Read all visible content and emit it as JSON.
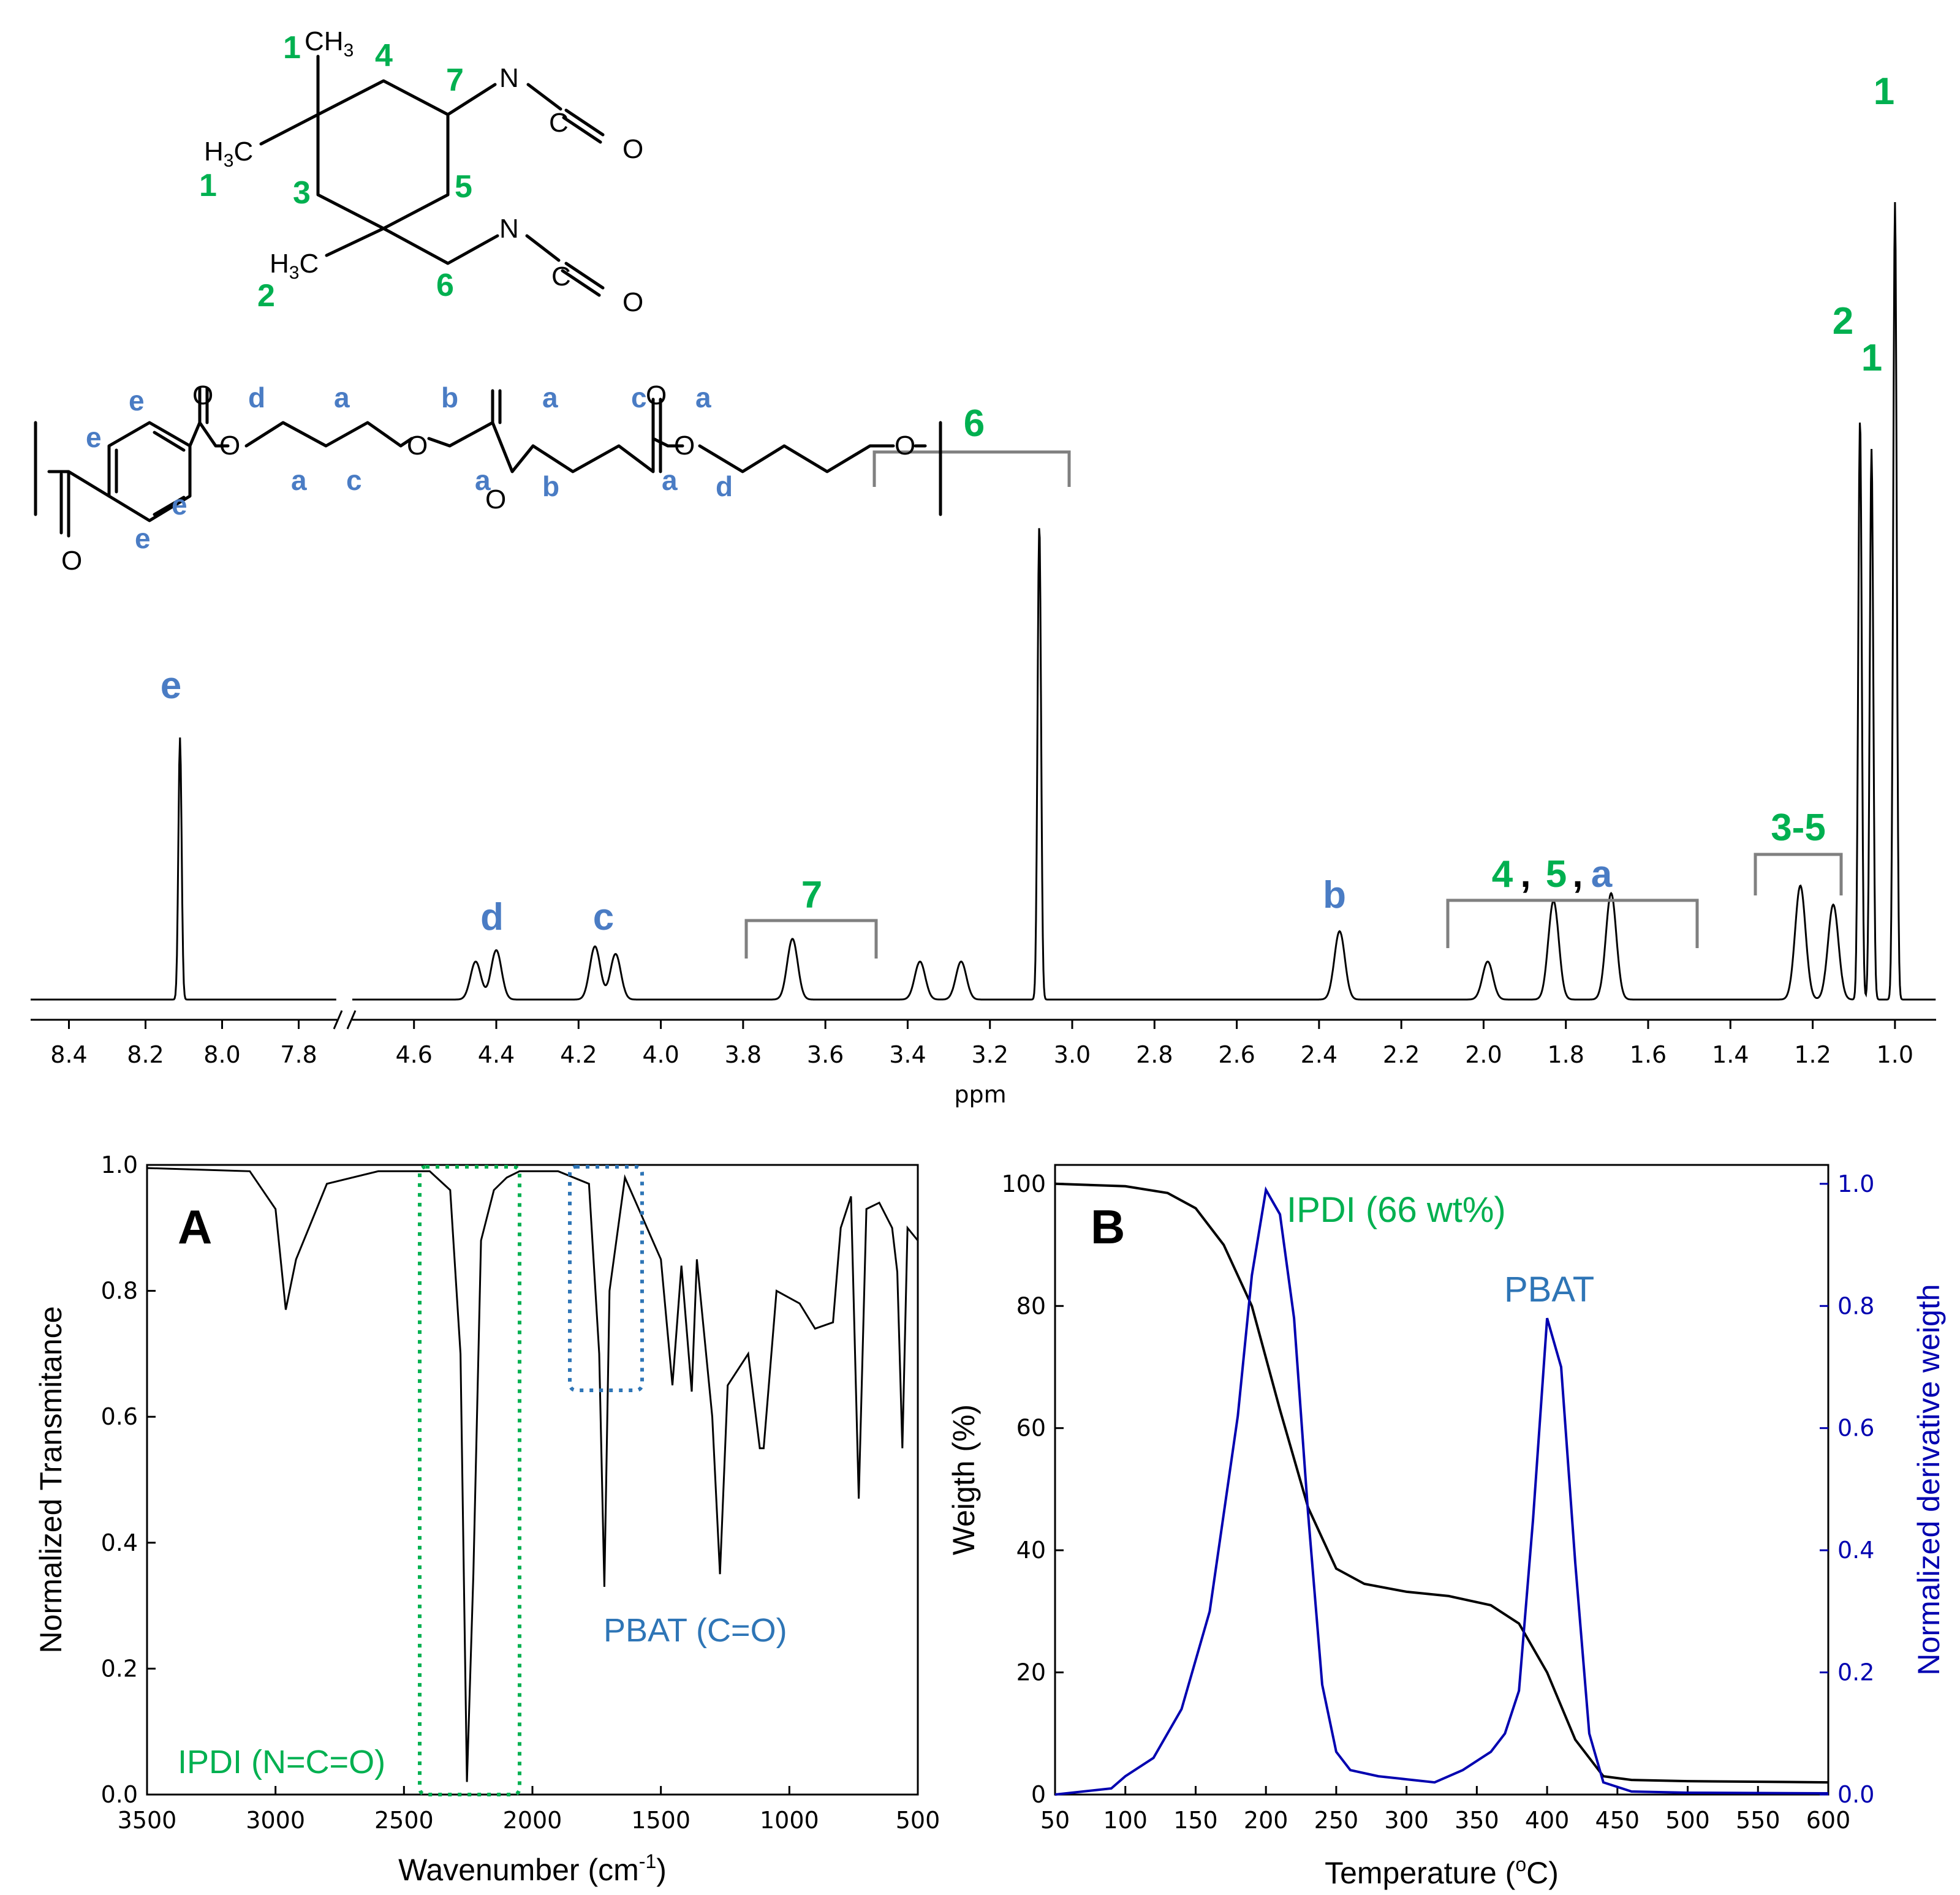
{
  "nmr": {
    "xlabel": "ppm",
    "ticks_left": [
      "8.4",
      "8.2",
      "8.0",
      "7.8"
    ],
    "ticks_right": [
      "4.6",
      "4.4",
      "4.2",
      "4.0",
      "3.8",
      "3.6",
      "3.4",
      "3.2",
      "3.0",
      "2.8",
      "2.6",
      "2.4",
      "2.2",
      "2.0",
      "1.8",
      "1.6",
      "1.4",
      "1.2",
      "1.0"
    ],
    "peak_labels": {
      "e": "e",
      "d": "d",
      "c": "c",
      "b": "b",
      "n7": "7",
      "n6": "6",
      "n35": "3-5",
      "n2": "2",
      "n1a": "1",
      "n1b": "1",
      "g45a_4": "4",
      "g45a_c1": ",",
      "g45a_5": "5",
      "g45a_c2": ",",
      "g45a_a": "a"
    },
    "ipdi_structure": {
      "atoms": {
        "ch3_top": "CH",
        "ch3_top_sub": "3",
        "ch3_left": "H",
        "ch3_left_sub": "3",
        "ch3_left_c": "C",
        "ch3_bot": "H",
        "ch3_bot_sub": "3",
        "ch3_bot_c": "C",
        "n1": "N",
        "c1": "C",
        "o1": "O",
        "n2": "N",
        "c2": "C",
        "o2": "O"
      },
      "numbers": {
        "p1a": "1",
        "p1b": "1",
        "p2": "2",
        "p3": "3",
        "p4": "4",
        "p5": "5",
        "p6": "6",
        "p7": "7"
      }
    },
    "pbat_structure": {
      "atoms": {
        "o_ring": "O",
        "o1": "O",
        "o2": "O",
        "o3": "O",
        "o4": "O",
        "o5": "O",
        "o6": "O"
      },
      "letters": {
        "e1": "e",
        "e2": "e",
        "e3": "e",
        "e4": "e",
        "d1": "d",
        "a1": "a",
        "a2": "a",
        "c1": "c",
        "b1": "b",
        "a3": "a",
        "a4": "a",
        "b2": "b",
        "c2": "c",
        "a5": "a",
        "a6": "a",
        "d2": "d"
      }
    }
  },
  "ftir": {
    "panel": "A",
    "xlabel": "Wavenumber (cm",
    "xlabel_sup": "-1",
    "xlabel_end": ")",
    "ylabel": "Normalized Transmitance",
    "xticks": [
      "3500",
      "3000",
      "2500",
      "2000",
      "1500",
      "1000",
      "500"
    ],
    "yticks": [
      "0.0",
      "0.2",
      "0.4",
      "0.6",
      "0.8",
      "1.0"
    ],
    "annot_ipdi": "IPDI (N=C=O)",
    "annot_pbat": "PBAT (C=O)"
  },
  "tga": {
    "panel": "B",
    "xlabel": "Temperature (",
    "xlabel_sup": "o",
    "xlabel_end": "C)",
    "ylabel_left": "Weigth (%)",
    "ylabel_right": "Normalized derivative weigth",
    "xticks": [
      "50",
      "100",
      "150",
      "200",
      "250",
      "300",
      "350",
      "400",
      "450",
      "500",
      "550",
      "600"
    ],
    "yticks_left": [
      "0",
      "20",
      "40",
      "60",
      "80",
      "100"
    ],
    "yticks_right": [
      "0.0",
      "0.2",
      "0.4",
      "0.6",
      "0.8",
      "1.0"
    ],
    "annot_ipdi": "IPDI (66 wt%)",
    "annot_pbat": "PBAT"
  },
  "colors": {
    "green": "#00b050",
    "blue_letter": "#4a7cc4",
    "deriv_line": "#0000b0",
    "ann_blue": "#2e75b6",
    "bracket": "#808080"
  },
  "chart_data": [
    {
      "type": "line",
      "xlabel": "ppm",
      "x_reversed": true,
      "xlim_left_segment": [
        8.5,
        7.7
      ],
      "xlim_right_segment": [
        4.75,
        0.9
      ],
      "peaks": [
        {
          "ppm": 8.11,
          "rel_height": 0.69,
          "label": "e"
        },
        {
          "ppm": 4.45,
          "rel_height": 0.1,
          "label": "d"
        },
        {
          "ppm": 4.4,
          "rel_height": 0.13
        },
        {
          "ppm": 4.16,
          "rel_height": 0.14,
          "label": "c"
        },
        {
          "ppm": 4.11,
          "rel_height": 0.12
        },
        {
          "ppm": 3.68,
          "rel_height": 0.16,
          "label": "7"
        },
        {
          "ppm": 3.37,
          "rel_height": 0.1
        },
        {
          "ppm": 3.27,
          "rel_height": 0.1
        },
        {
          "ppm": 3.08,
          "rel_height": 1.25,
          "label": "6"
        },
        {
          "ppm": 2.35,
          "rel_height": 0.18,
          "label": "b"
        },
        {
          "ppm": 1.99,
          "rel_height": 0.1
        },
        {
          "ppm": 1.83,
          "rel_height": 0.26
        },
        {
          "ppm": 1.69,
          "rel_height": 0.28
        },
        {
          "ppm": 1.23,
          "rel_height": 0.3,
          "label": "3-5"
        },
        {
          "ppm": 1.15,
          "rel_height": 0.25
        },
        {
          "ppm": 1.085,
          "rel_height": 1.53,
          "label": "2"
        },
        {
          "ppm": 1.057,
          "rel_height": 1.45,
          "label": "1"
        },
        {
          "ppm": 1.0,
          "rel_height": 2.1,
          "label": "1"
        }
      ]
    },
    {
      "type": "line",
      "xlabel": "Wavenumber (cm-1)",
      "ylabel": "Normalized Transmitance",
      "xlim": [
        3500,
        500
      ],
      "ylim": [
        0.0,
        1.0
      ],
      "series": [
        {
          "x": [
            3500,
            3100,
            3000,
            2960,
            2920,
            2870,
            2800,
            2600,
            2400,
            2320,
            2280,
            2255,
            2230,
            2200,
            2150,
            2100,
            2050,
            1900,
            1780,
            1740,
            1720,
            1700,
            1640,
            1500,
            1455,
            1420,
            1380,
            1360,
            1300,
            1270,
            1240,
            1160,
            1115,
            1100,
            1050,
            960,
            900,
            830,
            800,
            760,
            730,
            700,
            650,
            600,
            580,
            560,
            540,
            500
          ],
          "y": [
            0.995,
            0.99,
            0.93,
            0.77,
            0.85,
            0.9,
            0.97,
            0.99,
            0.99,
            0.96,
            0.7,
            0.02,
            0.35,
            0.88,
            0.96,
            0.98,
            0.99,
            0.99,
            0.97,
            0.7,
            0.33,
            0.8,
            0.98,
            0.85,
            0.65,
            0.84,
            0.64,
            0.85,
            0.6,
            0.35,
            0.65,
            0.7,
            0.55,
            0.55,
            0.8,
            0.78,
            0.74,
            0.75,
            0.9,
            0.95,
            0.47,
            0.93,
            0.94,
            0.9,
            0.83,
            0.55,
            0.9,
            0.88
          ]
        }
      ]
    },
    {
      "type": "line",
      "xlabel": "Temperature (oC)",
      "ylabel": "Weigth (%)",
      "y2label": "Normalized derivative weigth",
      "xlim": [
        50,
        600
      ],
      "ylim": [
        0,
        100
      ],
      "y2lim": [
        0.0,
        1.0
      ],
      "series": [
        {
          "axis": "left",
          "x": [
            50,
            100,
            130,
            150,
            170,
            190,
            210,
            230,
            250,
            270,
            300,
            330,
            360,
            380,
            400,
            420,
            440,
            460,
            500,
            600
          ],
          "y": [
            100,
            99.6,
            98.5,
            96,
            90,
            80,
            63,
            47,
            37,
            34.5,
            33.2,
            32.5,
            31,
            28,
            20,
            9,
            3,
            2.4,
            2.2,
            2.0
          ]
        },
        {
          "axis": "right",
          "x": [
            50,
            90,
            100,
            120,
            140,
            160,
            180,
            190,
            200,
            210,
            220,
            230,
            240,
            250,
            260,
            280,
            300,
            320,
            340,
            360,
            370,
            380,
            390,
            400,
            410,
            420,
            430,
            440,
            460,
            500,
            600
          ],
          "y": [
            0.0,
            0.01,
            0.03,
            0.06,
            0.14,
            0.3,
            0.62,
            0.85,
            0.99,
            0.95,
            0.78,
            0.46,
            0.18,
            0.07,
            0.04,
            0.03,
            0.025,
            0.02,
            0.04,
            0.07,
            0.1,
            0.17,
            0.45,
            0.78,
            0.7,
            0.38,
            0.1,
            0.02,
            0.005,
            0.003,
            0.002
          ]
        }
      ]
    }
  ]
}
